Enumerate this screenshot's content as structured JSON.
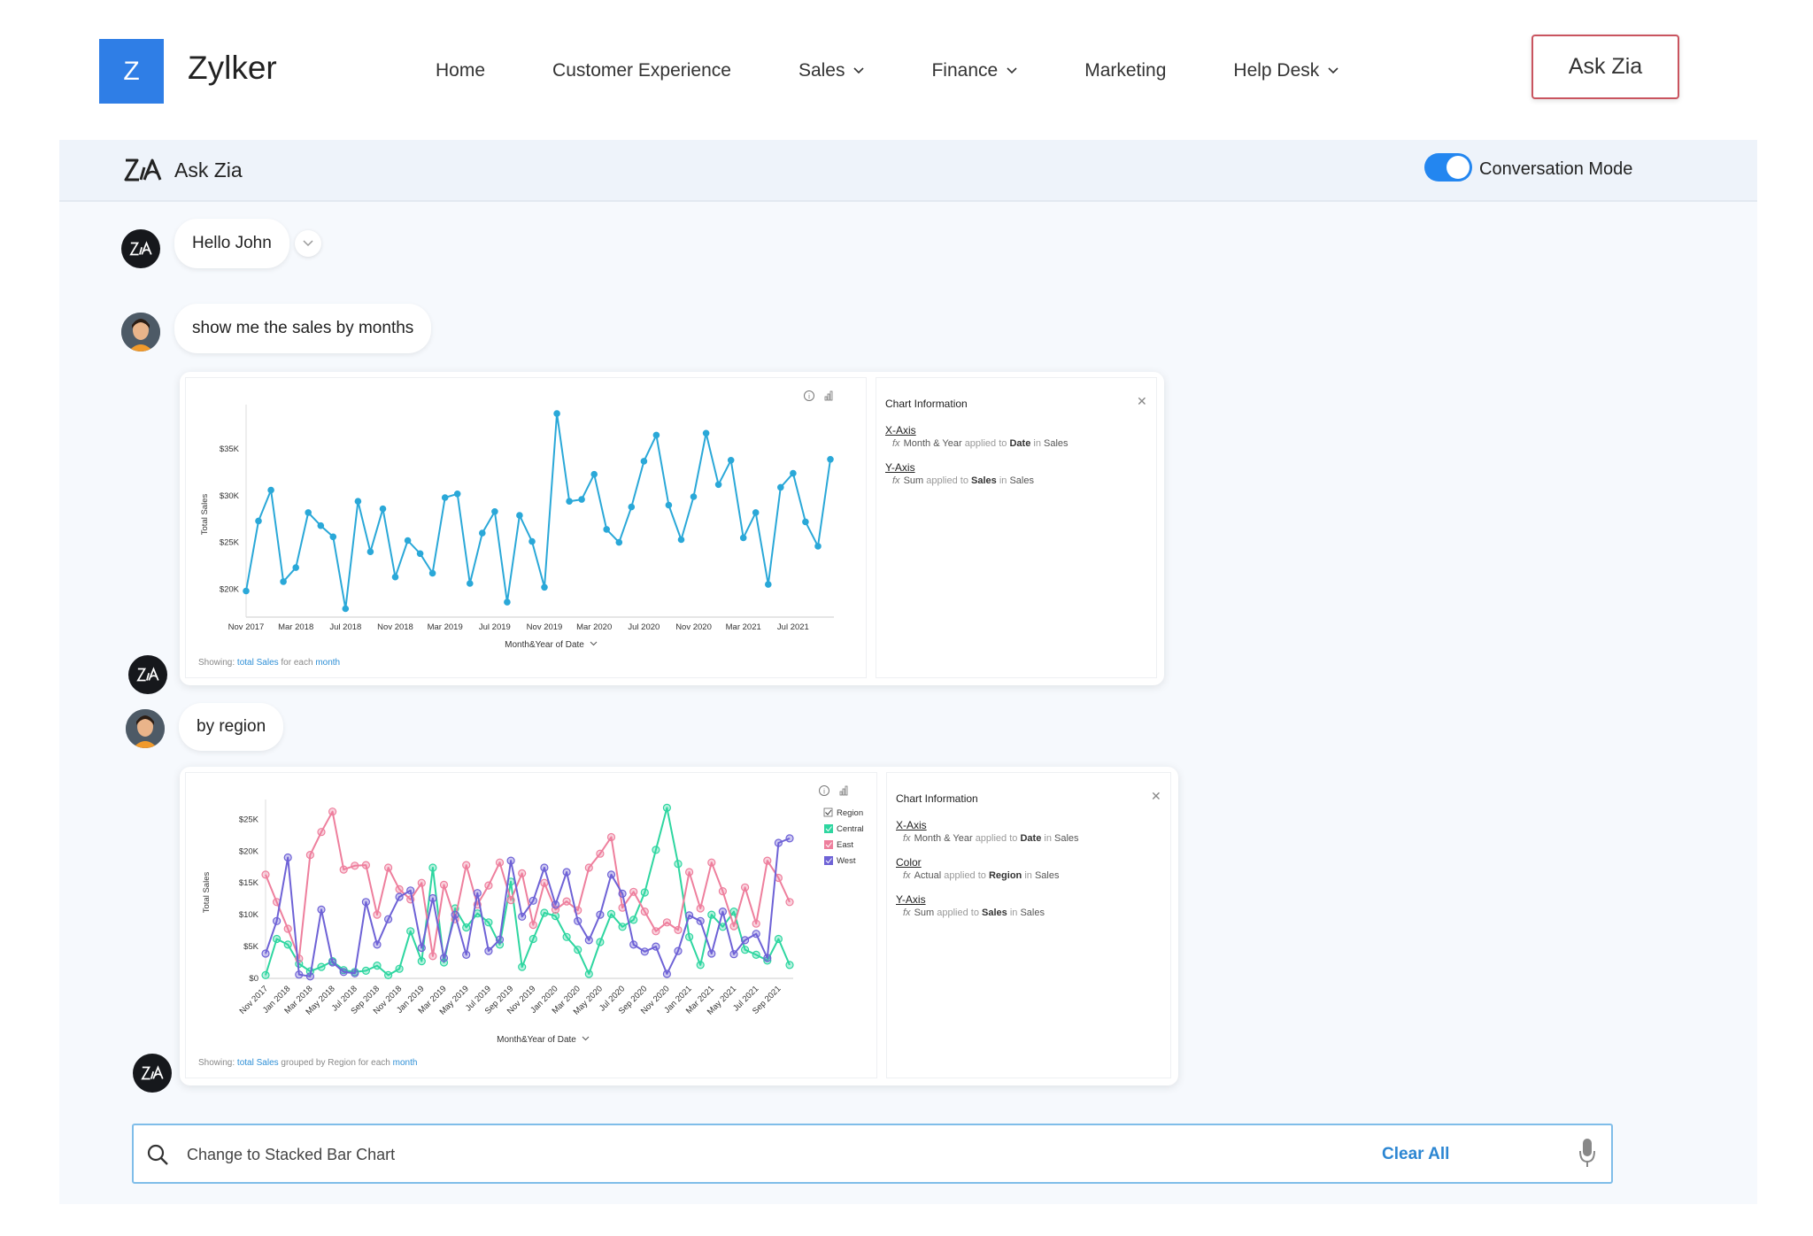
{
  "header": {
    "logo_letter": "Z",
    "brand": "Zylker",
    "nav": [
      {
        "label": "Home",
        "has_dropdown": false
      },
      {
        "label": "Customer Experience",
        "has_dropdown": false
      },
      {
        "label": "Sales",
        "has_dropdown": true
      },
      {
        "label": "Finance",
        "has_dropdown": true
      },
      {
        "label": "Marketing",
        "has_dropdown": false
      },
      {
        "label": "Help Desk",
        "has_dropdown": true
      }
    ],
    "ask_button": "Ask Zia"
  },
  "panel": {
    "title": "Ask Zia",
    "toggle_label": "Conversation Mode",
    "toggle_on": true
  },
  "conversation": {
    "greeting": "Hello John",
    "user_msg_1": "show me the sales by months",
    "user_msg_2": "by region"
  },
  "chart1_info": {
    "title": "Chart Information",
    "xaxis_label": "X-Axis",
    "xaxis_fx": "fx",
    "xaxis_a": "Month & Year",
    "xaxis_b": "applied to",
    "xaxis_c": "Date",
    "xaxis_d": "in",
    "xaxis_e": "Sales",
    "yaxis_label": "Y-Axis",
    "yaxis_fx": "fx",
    "yaxis_a": "Sum",
    "yaxis_b": "applied to",
    "yaxis_c": "Sales",
    "yaxis_d": "in",
    "yaxis_e": "Sales",
    "showing_prefix": "Showing:",
    "showing_total": "total",
    "showing_sales": "Sales",
    "showing_each": "for each",
    "showing_month": "month"
  },
  "chart2_info": {
    "title": "Chart Information",
    "xaxis_label": "X-Axis",
    "xaxis_fx": "fx",
    "xaxis_a": "Month & Year",
    "xaxis_b": "applied to",
    "xaxis_c": "Date",
    "xaxis_d": "in",
    "xaxis_e": "Sales",
    "color_label": "Color",
    "color_fx": "fx",
    "color_a": "Actual",
    "color_b": "applied to",
    "color_c": "Region",
    "color_d": "in",
    "color_e": "Sales",
    "yaxis_label": "Y-Axis",
    "yaxis_fx": "fx",
    "yaxis_a": "Sum",
    "yaxis_b": "applied to",
    "yaxis_c": "Sales",
    "yaxis_d": "in",
    "yaxis_e": "Sales",
    "showing_prefix": "Showing:",
    "showing_total": "total",
    "showing_sales": "Sales",
    "showing_grouped": "grouped by",
    "showing_region": "Region",
    "showing_each": "for each",
    "showing_month": "month"
  },
  "search": {
    "value": "Change to Stacked Bar Chart",
    "clear_label": "Clear All"
  },
  "colors": {
    "accent": "#2386f0",
    "line1": "#2aa8d8",
    "central": "#2ed6a0",
    "east": "#ee7f9d",
    "west": "#6e62d6"
  },
  "chart_data": [
    {
      "type": "line",
      "xlabel": "Month&Year of Date",
      "ylabel": "Total Sales",
      "ylim": [
        17000,
        39000
      ],
      "yticks": [
        20000,
        25000,
        30000,
        35000
      ],
      "ytick_labels": [
        "$20K",
        "$25K",
        "$30K",
        "$35K"
      ],
      "x_tick_labels": [
        "Nov 2017",
        "Mar 2018",
        "Jul 2018",
        "Nov 2018",
        "Mar 2019",
        "Jul 2019",
        "Nov 2019",
        "Mar 2020",
        "Jul 2020",
        "Nov 2020",
        "Mar 2021",
        "Jul 2021"
      ],
      "x_tick_indices": [
        0,
        4,
        8,
        12,
        16,
        20,
        24,
        28,
        32,
        36,
        40,
        44
      ],
      "series": [
        {
          "values": [
            19800,
            27300,
            30600,
            20800,
            22300,
            28200,
            26800,
            25600,
            17900,
            29400,
            24000,
            28600,
            21300,
            25200,
            23800,
            21700,
            29800,
            30200,
            20600,
            26000,
            28300,
            18600,
            27900,
            25100,
            20200,
            38800,
            29400,
            29600,
            32300,
            26400,
            25000,
            28800,
            33700,
            36500,
            29000,
            25300,
            29900,
            36700,
            31200,
            33800,
            25500,
            28200,
            20500,
            30900,
            32400,
            27200,
            24600,
            33900
          ]
        }
      ]
    },
    {
      "type": "line",
      "xlabel": "Month&Year of Date",
      "ylabel": "Total Sales",
      "ylim": [
        0,
        27000
      ],
      "yticks": [
        0,
        5000,
        10000,
        15000,
        20000,
        25000
      ],
      "ytick_labels": [
        "$0",
        "$5K",
        "$10K",
        "$15K",
        "$20K",
        "$25K"
      ],
      "x_tick_labels": [
        "Nov 2017",
        "Jan 2018",
        "Mar 2018",
        "May 2018",
        "Jul 2018",
        "Sep 2018",
        "Nov 2018",
        "Jan 2019",
        "Mar 2019",
        "May 2019",
        "Jul 2019",
        "Sep 2019",
        "Nov 2019",
        "Jan 2020",
        "Mar 2020",
        "May 2020",
        "Jul 2020",
        "Sep 2020",
        "Nov 2020",
        "Jan 2021",
        "Mar 2021",
        "May 2021",
        "Jul 2021",
        "Sep 2021"
      ],
      "x_tick_indices": [
        0,
        2,
        4,
        6,
        8,
        10,
        12,
        14,
        16,
        18,
        20,
        22,
        24,
        26,
        28,
        30,
        32,
        34,
        36,
        38,
        40,
        42,
        44,
        46
      ],
      "legend_title": "Region",
      "legend_position": "top-right",
      "series": [
        {
          "name": "Central",
          "color": "#2ed6a0",
          "values": [
            500,
            6200,
            5300,
            2300,
            1100,
            1800,
            2700,
            1300,
            1000,
            1200,
            2000,
            500,
            1500,
            7400,
            2700,
            17400,
            2500,
            11000,
            8000,
            10200,
            8800,
            5300,
            15200,
            1800,
            6200,
            10300,
            9800,
            6500,
            4500,
            700,
            5700,
            10100,
            8100,
            9200,
            13500,
            20200,
            26800,
            18000,
            6500,
            2100,
            10000,
            8100,
            10500,
            4500,
            3700,
            2800,
            6200,
            2100
          ]
        },
        {
          "name": "East",
          "color": "#ee7f9d",
          "values": [
            16300,
            12000,
            7800,
            3100,
            19400,
            23000,
            26200,
            17100,
            17700,
            17800,
            10000,
            17400,
            14000,
            12400,
            15000,
            3500,
            14700,
            9300,
            17800,
            11600,
            14600,
            18200,
            12300,
            16500,
            8400,
            15000,
            10800,
            12100,
            10700,
            17400,
            19600,
            22200,
            11100,
            13600,
            10500,
            7400,
            8800,
            7600,
            16700,
            11000,
            18200,
            13700,
            8200,
            14300,
            8600,
            18500,
            15800,
            12000
          ]
        },
        {
          "name": "West",
          "color": "#6e62d6",
          "values": [
            3900,
            9000,
            19000,
            600,
            300,
            10800,
            2500,
            1000,
            800,
            12000,
            5300,
            9300,
            12800,
            13800,
            4800,
            12600,
            3200,
            10000,
            3700,
            13400,
            4300,
            6100,
            18500,
            9700,
            12200,
            17400,
            11600,
            16700,
            9000,
            6000,
            10000,
            16300,
            13300,
            5300,
            4200,
            5000,
            700,
            4300,
            9900,
            9000,
            3900,
            10500,
            3800,
            6000,
            7000,
            3200,
            21300,
            22000
          ]
        }
      ]
    }
  ]
}
